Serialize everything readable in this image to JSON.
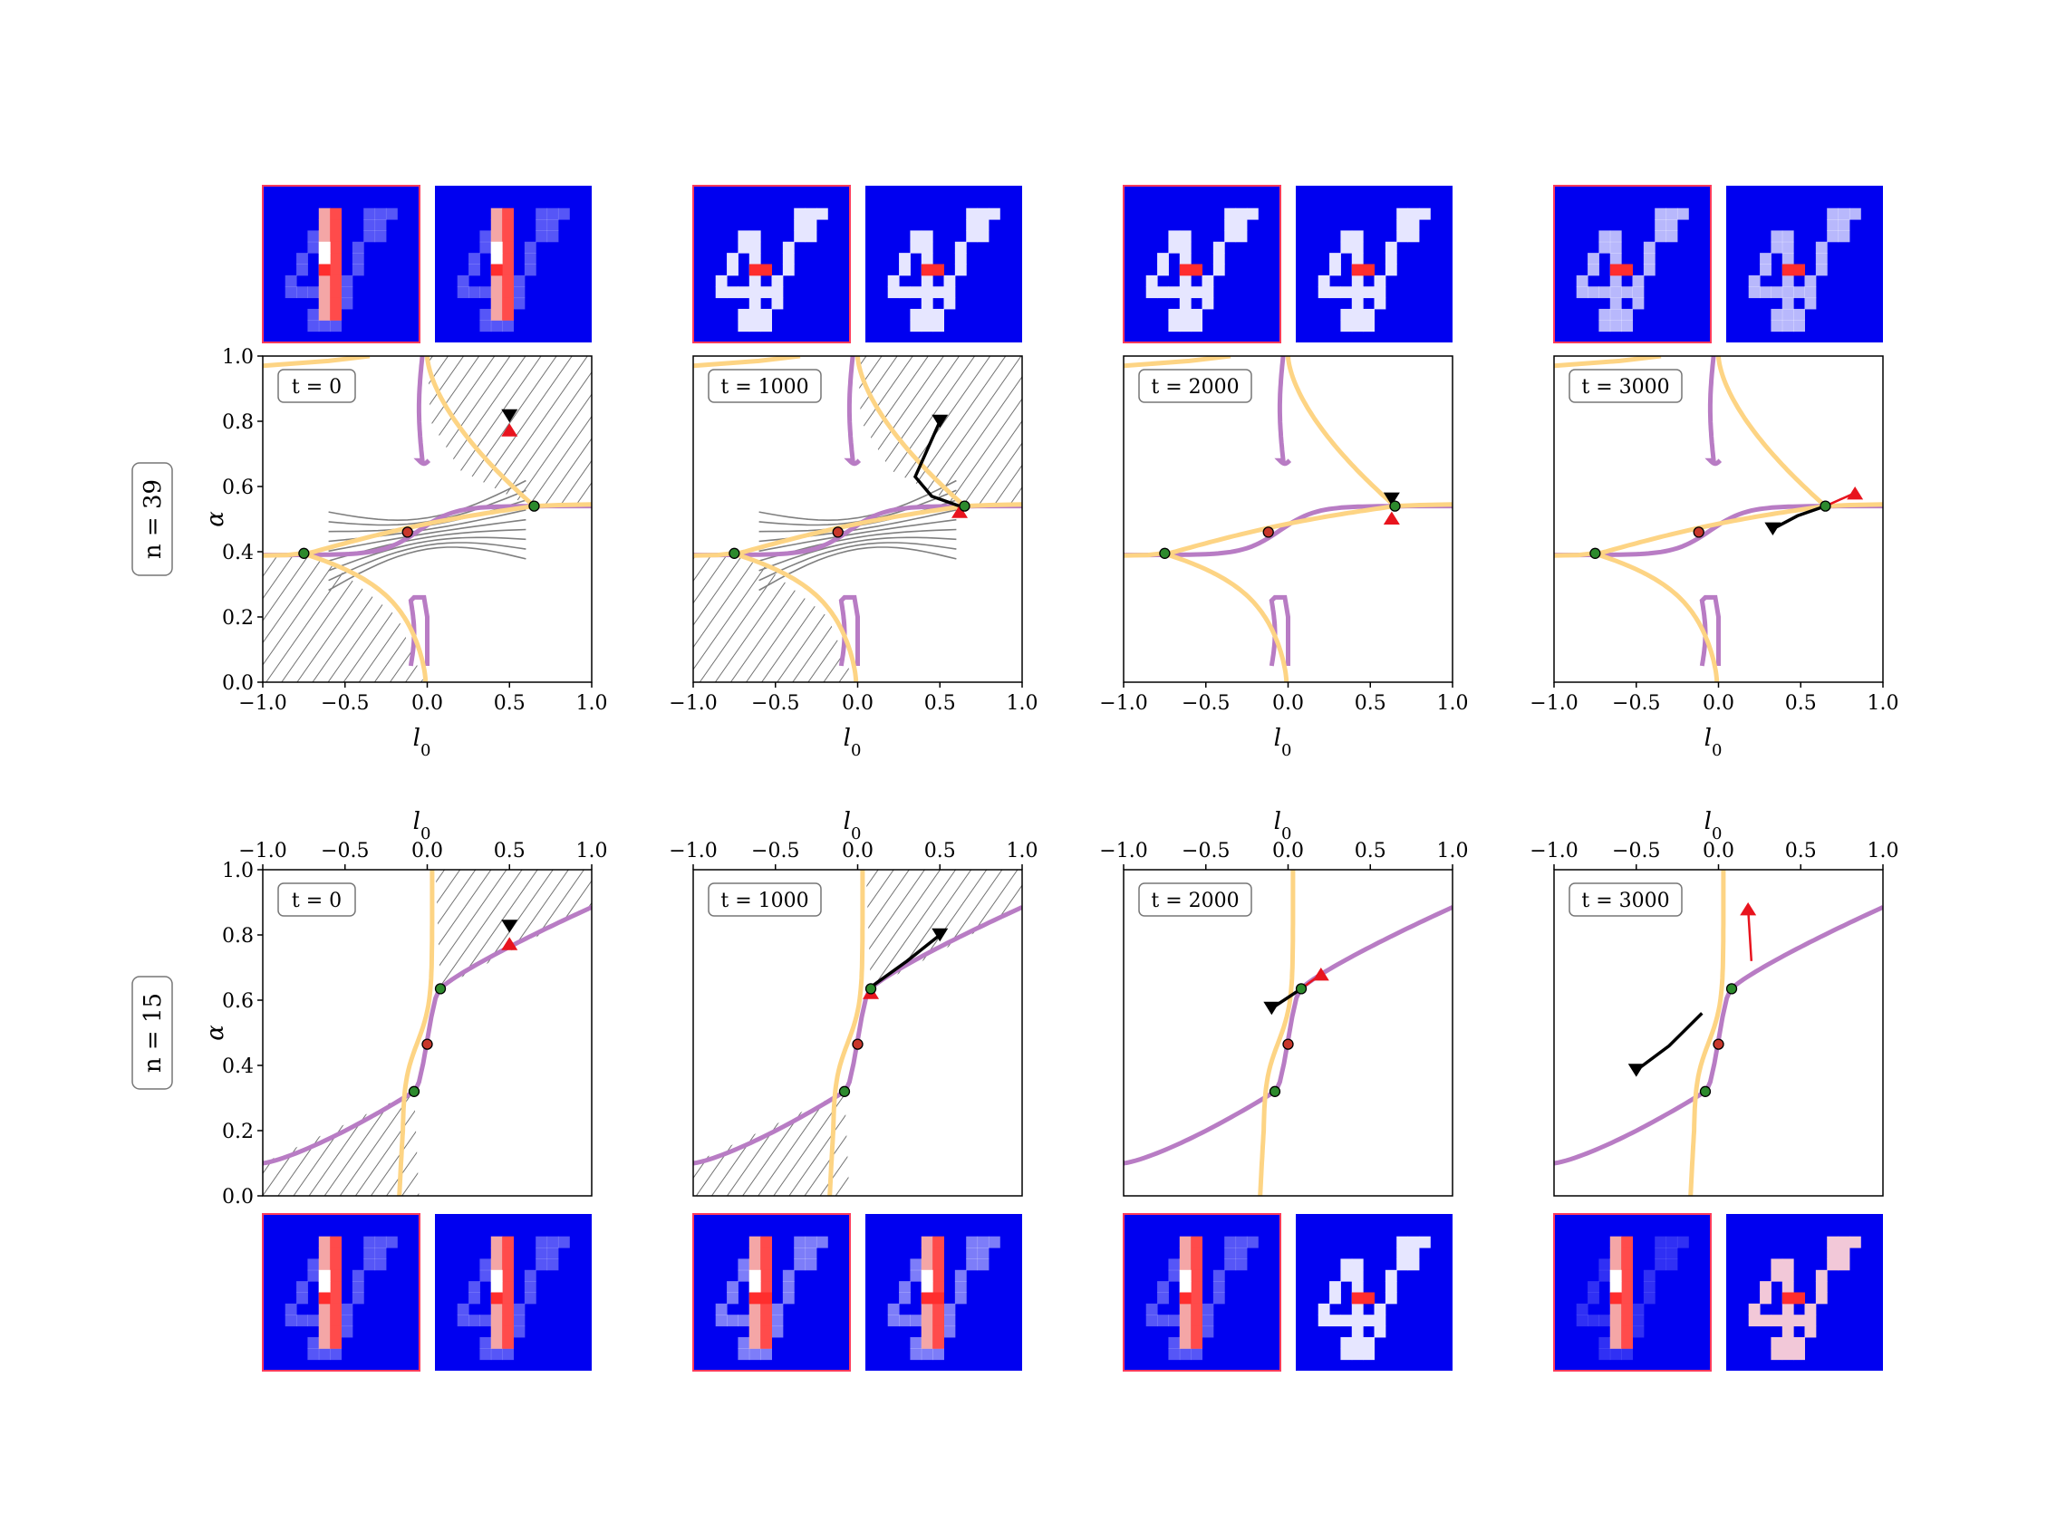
{
  "figure": {
    "rows": [
      {
        "label": "n = 39",
        "label_var": "n",
        "label_value": "39",
        "xlabel_position": "bottom"
      },
      {
        "label": "n = 15",
        "label_var": "n",
        "label_value": "15",
        "xlabel_position": "top"
      }
    ],
    "times": [
      "t = 0",
      "t = 1000",
      "t = 2000",
      "t = 3000"
    ],
    "colors": {
      "purple_curve": "#b87cc4",
      "orange_curve": "#fdd484",
      "stable_point": "#2d8a2d",
      "unstable_point": "#c8372b",
      "trajectory": "#000000",
      "trajectory_highlight": "#e8141e",
      "stream": "#7f7f7f",
      "hatch_region": "#5a5a5a",
      "thumb_background": "#0000f0",
      "thumb_highlight": "#ff2d2d"
    },
    "thumbnail_icons": [
      "digit-4-heatmap-icon",
      "digit-4-heatmap-icon"
    ]
  },
  "chart_data": [
    {
      "type": "line",
      "panel": "n=39, t=0",
      "annotation": "t = 0",
      "xlabel": "l0",
      "ylabel": "α",
      "xlim": [
        -1.0,
        1.0
      ],
      "ylim": [
        0.0,
        1.0
      ],
      "xticks": [
        "−1.0",
        "−0.5",
        "0.0",
        "0.5",
        "1.0"
      ],
      "yticks": [
        "0.0",
        "0.2",
        "0.4",
        "0.6",
        "0.8",
        "1.0"
      ],
      "fixed_points": [
        {
          "x": -0.75,
          "y": 0.395,
          "kind": "stable"
        },
        {
          "x": -0.12,
          "y": 0.46,
          "kind": "unstable"
        },
        {
          "x": 0.65,
          "y": 0.54,
          "kind": "stable"
        }
      ],
      "trajectory_markers": [
        {
          "x": 0.5,
          "y": 0.8,
          "marker": "black-down"
        },
        {
          "x": 0.5,
          "y": 0.79,
          "marker": "red-up"
        }
      ],
      "stream_field": true
    },
    {
      "type": "line",
      "panel": "n=39, t=1000",
      "annotation": "t = 1000",
      "xlabel": "l0",
      "ylabel": "α",
      "xlim": [
        -1.0,
        1.0
      ],
      "ylim": [
        0.0,
        1.0
      ],
      "fixed_points": [
        {
          "x": -0.75,
          "y": 0.395,
          "kind": "stable"
        },
        {
          "x": -0.12,
          "y": 0.46,
          "kind": "unstable"
        },
        {
          "x": 0.65,
          "y": 0.54,
          "kind": "stable"
        }
      ],
      "trajectory": {
        "x": [
          0.5,
          0.35,
          0.45,
          0.62
        ],
        "y": [
          0.8,
          0.63,
          0.57,
          0.54
        ]
      },
      "stream_field": true
    },
    {
      "type": "line",
      "panel": "n=39, t=2000",
      "annotation": "t = 2000",
      "xlabel": "l0",
      "ylabel": "α",
      "xlim": [
        -1.0,
        1.0
      ],
      "ylim": [
        0.0,
        1.0
      ],
      "fixed_points": [
        {
          "x": -0.75,
          "y": 0.395,
          "kind": "stable"
        },
        {
          "x": -0.12,
          "y": 0.46,
          "kind": "unstable"
        },
        {
          "x": 0.65,
          "y": 0.54,
          "kind": "stable"
        }
      ],
      "trajectory_markers": [
        {
          "x": 0.63,
          "y": 0.545,
          "marker": "black-down"
        },
        {
          "x": 0.63,
          "y": 0.52,
          "marker": "red-up"
        }
      ],
      "stream_field": false
    },
    {
      "type": "line",
      "panel": "n=39, t=3000",
      "annotation": "t = 3000",
      "xlabel": "l0",
      "ylabel": "α",
      "xlim": [
        -1.0,
        1.0
      ],
      "ylim": [
        0.0,
        1.0
      ],
      "fixed_points": [
        {
          "x": -0.75,
          "y": 0.395,
          "kind": "stable"
        },
        {
          "x": -0.12,
          "y": 0.46,
          "kind": "unstable"
        },
        {
          "x": 0.65,
          "y": 0.54,
          "kind": "stable"
        }
      ],
      "trajectory": {
        "x": [
          0.33,
          0.48,
          0.65
        ],
        "y": [
          0.47,
          0.51,
          0.54
        ]
      },
      "trajectory_red": {
        "x": [
          0.65,
          0.83
        ],
        "y": [
          0.54,
          0.58
        ]
      },
      "stream_field": false
    },
    {
      "type": "line",
      "panel": "n=15, t=0",
      "annotation": "t = 0",
      "xlabel": "l0",
      "ylabel": "α",
      "xlim": [
        -1.0,
        1.0
      ],
      "ylim": [
        0.0,
        1.0
      ],
      "fixed_points": [
        {
          "x": -0.08,
          "y": 0.32,
          "kind": "stable"
        },
        {
          "x": 0.0,
          "y": 0.465,
          "kind": "unstable"
        },
        {
          "x": 0.08,
          "y": 0.635,
          "kind": "stable"
        }
      ],
      "trajectory_markers": [
        {
          "x": 0.5,
          "y": 0.81,
          "marker": "black-down"
        },
        {
          "x": 0.5,
          "y": 0.79,
          "marker": "red-up"
        }
      ],
      "stream_field": true
    },
    {
      "type": "line",
      "panel": "n=15, t=1000",
      "annotation": "t = 1000",
      "xlabel": "l0",
      "ylabel": "α",
      "xlim": [
        -1.0,
        1.0
      ],
      "ylim": [
        0.0,
        1.0
      ],
      "fixed_points": [
        {
          "x": -0.08,
          "y": 0.32,
          "kind": "stable"
        },
        {
          "x": 0.0,
          "y": 0.465,
          "kind": "unstable"
        },
        {
          "x": 0.08,
          "y": 0.635,
          "kind": "stable"
        }
      ],
      "trajectory": {
        "x": [
          0.5,
          0.3,
          0.08
        ],
        "y": [
          0.8,
          0.72,
          0.64
        ]
      },
      "stream_field": true
    },
    {
      "type": "line",
      "panel": "n=15, t=2000",
      "annotation": "t = 2000",
      "xlabel": "l0",
      "ylabel": "α",
      "xlim": [
        -1.0,
        1.0
      ],
      "ylim": [
        0.0,
        1.0
      ],
      "fixed_points": [
        {
          "x": -0.08,
          "y": 0.32,
          "kind": "stable"
        },
        {
          "x": 0.0,
          "y": 0.465,
          "kind": "unstable"
        },
        {
          "x": 0.08,
          "y": 0.635,
          "kind": "stable"
        }
      ],
      "trajectory": {
        "x": [
          -0.1,
          0.08
        ],
        "y": [
          0.575,
          0.635
        ]
      },
      "trajectory_red": {
        "x": [
          0.08,
          0.2
        ],
        "y": [
          0.635,
          0.68
        ]
      },
      "stream_field": false
    },
    {
      "type": "line",
      "panel": "n=15, t=3000",
      "annotation": "t = 3000",
      "xlabel": "l0",
      "ylabel": "α",
      "xlim": [
        -1.0,
        1.0
      ],
      "ylim": [
        0.0,
        1.0
      ],
      "fixed_points": [
        {
          "x": -0.08,
          "y": 0.32,
          "kind": "stable"
        },
        {
          "x": 0.0,
          "y": 0.465,
          "kind": "unstable"
        },
        {
          "x": 0.08,
          "y": 0.635,
          "kind": "stable"
        }
      ],
      "trajectory": {
        "x": [
          -0.5,
          -0.3,
          -0.1
        ],
        "y": [
          0.385,
          0.46,
          0.56
        ]
      },
      "trajectory_red": {
        "x": [
          0.2,
          0.18
        ],
        "y": [
          0.72,
          0.88
        ]
      },
      "stream_field": false
    }
  ]
}
